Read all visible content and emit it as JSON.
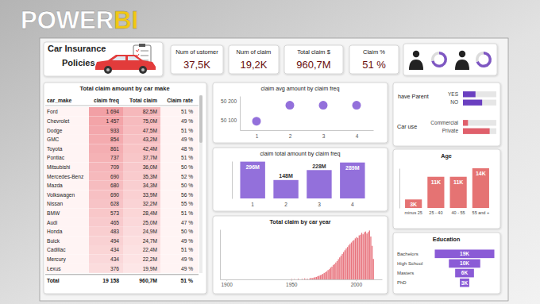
{
  "banner": {
    "brand": "POWER",
    "accent": "BI"
  },
  "header": {
    "title_lines": [
      "Car Insurance",
      "Policies"
    ]
  },
  "kpis": [
    {
      "label": "Num of ustomer",
      "value": "37,5K"
    },
    {
      "label": "Num of claim",
      "value": "19,2K"
    },
    {
      "label": "Total claim $",
      "value": "960,7M"
    },
    {
      "label": "Claim %",
      "value": "51 %"
    }
  ],
  "table": {
    "title": "Total claim amount by car make",
    "columns": [
      "car_make",
      "claim freq",
      "Total claim",
      "Claim rate"
    ],
    "rows": [
      [
        "Ford",
        "1 694",
        "82,5M",
        "51 %"
      ],
      [
        "Chevrolet",
        "1 457",
        "75,0M",
        "49 %"
      ],
      [
        "Dodge",
        "933",
        "47,5M",
        "51 %"
      ],
      [
        "GMC",
        "854",
        "43,2M",
        "49 %"
      ],
      [
        "Toyota",
        "861",
        "42,4M",
        "48 %"
      ],
      [
        "Pontiac",
        "737",
        "37,7M",
        "51 %"
      ],
      [
        "Mitsubishi",
        "709",
        "36,0M",
        "50 %"
      ],
      [
        "Mercedes-Benz",
        "690",
        "35,3M",
        "52 %"
      ],
      [
        "Mazda",
        "680",
        "34,3M",
        "50 %"
      ],
      [
        "Volkswagen",
        "690",
        "33,9M",
        "56 %"
      ],
      [
        "Nissan",
        "628",
        "32,2M",
        "55 %"
      ],
      [
        "BMW",
        "573",
        "28,4M",
        "51 %"
      ],
      [
        "Audi",
        "465",
        "25,0M",
        "47 %"
      ],
      [
        "Honda",
        "483",
        "24,9M",
        "50 %"
      ],
      [
        "Buick",
        "494",
        "24,7M",
        "49 %"
      ],
      [
        "Cadillac",
        "434",
        "22,4M",
        "51 %"
      ],
      [
        "Mercury",
        "434",
        "22,2M",
        "49 %"
      ],
      [
        "Lexus",
        "376",
        "19,9M",
        "49 %"
      ]
    ],
    "total": [
      "Total",
      "19 158",
      "960,7M",
      "51 %"
    ]
  },
  "chart_data": [
    {
      "type": "scatter",
      "title": "claim avg amount by claim freq",
      "x": [
        1,
        2,
        3,
        4
      ],
      "values": [
        50096,
        50178,
        50178,
        50178
      ],
      "color": "#9370db",
      "marker": "circle",
      "xlim": [
        0.5,
        4.5
      ],
      "xticks": [
        1,
        2,
        3,
        4
      ],
      "ylim": [
        50050,
        50225
      ],
      "yticks": [
        {
          "value": 50100,
          "label": "50 100"
        },
        {
          "value": 50200,
          "label": "50 200"
        }
      ]
    },
    {
      "type": "bar",
      "title": "claim total amount by claim freq",
      "categories": [
        "1",
        "2",
        "3",
        "4"
      ],
      "values": [
        296,
        148,
        228,
        289
      ],
      "value_labels": [
        "296M",
        "148M",
        "228M",
        "289M"
      ],
      "data_labels": true,
      "color": "#9370db",
      "ylim": [
        0,
        300
      ],
      "tick_labels": "x"
    },
    {
      "type": "bar",
      "title": "Total claim by car year",
      "x": [
        1950,
        1952,
        1955,
        1958,
        1960,
        1962,
        1964,
        1965,
        1966,
        1967,
        1968,
        1969,
        1970,
        1971,
        1972,
        1973,
        1974,
        1975,
        1976,
        1977,
        1978,
        1979,
        1980,
        1981,
        1982,
        1983,
        1984,
        1985,
        1986,
        1987,
        1988,
        1989,
        1990,
        1991,
        1992,
        1993,
        1994,
        1995,
        1996,
        1997,
        1998,
        1999,
        2000,
        2001,
        2002,
        2003,
        2004,
        2005,
        2006,
        2007,
        2008,
        2009,
        2010,
        2011,
        2012,
        2013
      ],
      "values": [
        0.4,
        0.3,
        0.6,
        0.5,
        0.9,
        0.7,
        1.0,
        1.3,
        1.1,
        1.6,
        2.0,
        2.2,
        2.8,
        3.2,
        3.8,
        4.3,
        5.0,
        5.8,
        6.5,
        7.3,
        8.4,
        9.2,
        10.6,
        11.5,
        13.0,
        13.8,
        15.2,
        16.5,
        18.2,
        19.8,
        21.3,
        23.0,
        24.6,
        26.2,
        27.8,
        29.1,
        30.6,
        32.0,
        33.2,
        34.6,
        35.4,
        36.9,
        38.1,
        37.3,
        39.6,
        40.2,
        41.9,
        40.6,
        42.4,
        43.1,
        41.3,
        42.7,
        44.0,
        38.6,
        30.2,
        18.4
      ],
      "color": "#e8737d",
      "xlim": [
        1895,
        2020
      ],
      "xticks": [
        1900,
        1950,
        2000
      ],
      "ylim": [
        0,
        45
      ],
      "tick_labels": "x"
    },
    {
      "type": "bar",
      "orientation": "horizontal",
      "title": "have Parent",
      "categories": [
        "YES",
        "NO"
      ],
      "values": [
        15,
        23
      ],
      "color": "#6a3fc0",
      "xlim": [
        0,
        40
      ],
      "tick_labels": "y"
    },
    {
      "type": "bar",
      "orientation": "horizontal",
      "title": "Car use",
      "categories": [
        "Commercial",
        "Private"
      ],
      "values": [
        6,
        32
      ],
      "color": "#e0606c",
      "xlim": [
        0,
        40
      ],
      "tick_labels": "y"
    },
    {
      "type": "bar",
      "title": "Age",
      "categories": [
        "minus 25",
        "25 - 40",
        "40 - 55",
        "55 and +"
      ],
      "values": [
        3,
        11,
        11,
        14
      ],
      "value_labels": [
        "3K",
        "11K",
        "11K",
        "14K"
      ],
      "data_labels": true,
      "color": "#e57373",
      "ylim": [
        0,
        14
      ],
      "tick_labels": "x"
    },
    {
      "type": "funnel",
      "title": "Education",
      "categories": [
        "Bachelors",
        "High School",
        "Masters",
        "PhD"
      ],
      "values": [
        19,
        10,
        6,
        3
      ],
      "value_labels": [
        "19K",
        "10K",
        "6K",
        "3K"
      ],
      "data_labels": true,
      "color": "#8a5bd6",
      "xlim": [
        0,
        19
      ]
    },
    {
      "type": "donut",
      "values": [
        72,
        28
      ],
      "colors": [
        "#7e57c2",
        "#dcdcdc"
      ]
    },
    {
      "type": "donut",
      "values": [
        70,
        30
      ],
      "colors": [
        "#7e57c2",
        "#dcdcdc"
      ]
    }
  ]
}
